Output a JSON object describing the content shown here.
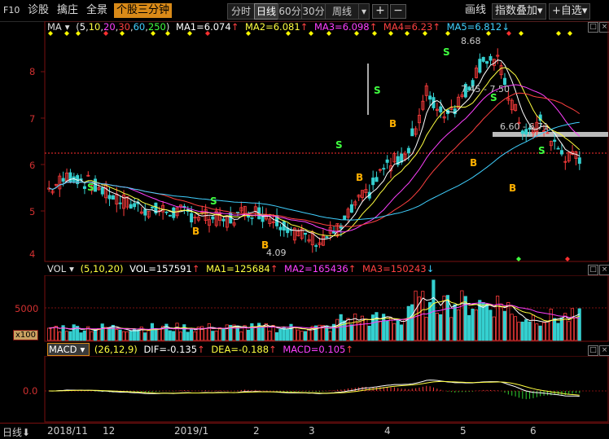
{
  "toolbar": {
    "f10": "F10",
    "items": [
      "诊股",
      "擒庄",
      "全景"
    ],
    "active_tab": "个股三分钟",
    "periods": [
      "分时",
      "日线",
      "60分",
      "30分",
      "周线"
    ],
    "period_dropdown_arrow": "▾",
    "plus": "+",
    "minus": "−",
    "draw_line": "画线",
    "index_overlay": "指数叠加",
    "add_watch": "+自选"
  },
  "main_legend": {
    "label": "MA",
    "arrow": "▾",
    "params_open": "(",
    "params": [
      "5",
      "10",
      "20",
      "30",
      "60",
      "250"
    ],
    "params_close": ")",
    "ma1": "MA1=6.074",
    "ma2": "MA2=6.081",
    "ma3": "MA3=6.098",
    "ma4": "MA4=6.23",
    "ma5": "MA5=6.812",
    "up_arrow": "↑",
    "down_arrow": "↓"
  },
  "main_chart": {
    "y_labels": [
      "8",
      "7",
      "6",
      "5",
      "4"
    ],
    "annotations": [
      "8.68",
      "7.45 - 7.50",
      "6.60 - 6.71",
      "4.09"
    ],
    "buy_marker": "B",
    "sell_marker": "S"
  },
  "vol_legend": {
    "label": "VOL",
    "arrow": "▾",
    "params": "(5,10,20)",
    "vol": "VOL=157591",
    "ma1": "MA1=125684",
    "ma2": "MA2=165436",
    "ma3": "MA3=150243",
    "up_arrow": "↑",
    "down_arrow": "↓"
  },
  "vol_chart": {
    "y_label": "5000",
    "unit": "x100"
  },
  "macd_legend": {
    "label": "MACD",
    "arrow": "▾",
    "params": "(26,12,9)",
    "dif": "DIF=-0.135",
    "dea": "DEA=-0.188",
    "macd": "MACD=0.105",
    "up_arrow": "↑"
  },
  "macd_chart": {
    "y_label": "0.0"
  },
  "x_axis": {
    "period_label": "日线",
    "period_arrow": "⬇",
    "labels": [
      "2018/11",
      "12",
      "2019/1",
      "2",
      "3",
      "4",
      "5",
      "6"
    ]
  },
  "panel_buttons": {
    "minimize": "▫",
    "maximize": "□",
    "close": "×"
  },
  "colors": {
    "up": "#ff3c3c",
    "down": "#35d0d0",
    "ma1": "#ffffff",
    "ma2": "#ffff40",
    "ma3": "#ff40ff",
    "ma4": "#ff4040",
    "ma5": "#40d0ff",
    "grid": "#7a1010",
    "accent": "#d98a18"
  }
}
